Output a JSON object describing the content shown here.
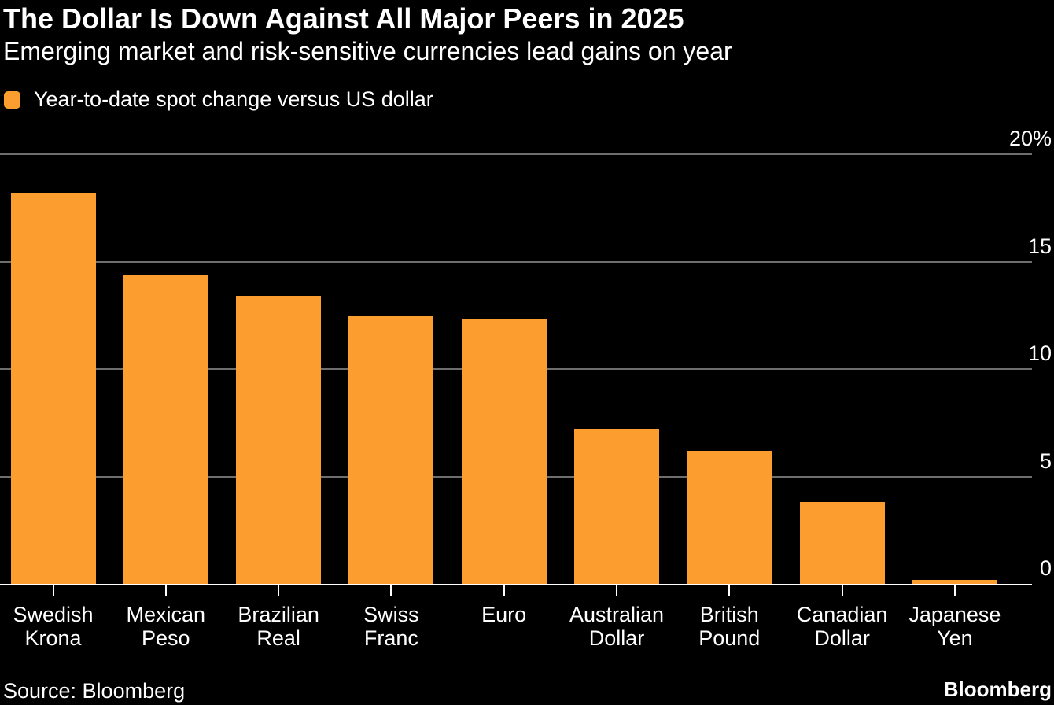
{
  "header": {
    "title": "The Dollar Is Down Against All Major Peers in 2025",
    "subtitle": "Emerging market and risk-sensitive currencies lead gains on year"
  },
  "legend": {
    "label": "Year-to-date spot change versus US dollar",
    "swatch_color": "#FC9E2F"
  },
  "chart_data": {
    "type": "bar",
    "title": "The Dollar Is Down Against All Major Peers in 2025",
    "subtitle": "Emerging market and risk-sensitive currencies lead gains on year",
    "legend_entries": [
      "Year-to-date spot change versus US dollar"
    ],
    "legend_position": "top-left",
    "categories": [
      "Swedish Krona",
      "Mexican Peso",
      "Brazilian Real",
      "Swiss Franc",
      "Euro",
      "Australian Dollar",
      "British Pound",
      "Canadian Dollar",
      "Japanese Yen"
    ],
    "category_lines": [
      [
        "Swedish",
        "Krona"
      ],
      [
        "Mexican",
        "Peso"
      ],
      [
        "Brazilian",
        "Real"
      ],
      [
        "Swiss",
        "Franc"
      ],
      [
        "Euro"
      ],
      [
        "Australian",
        "Dollar"
      ],
      [
        "British",
        "Pound"
      ],
      [
        "Canadian",
        "Dollar"
      ],
      [
        "Japanese",
        "Yen"
      ]
    ],
    "values": [
      18.2,
      14.4,
      13.4,
      12.5,
      12.3,
      7.2,
      6.2,
      3.8,
      0.2
    ],
    "unit": "%",
    "xlabel": "",
    "ylabel": "",
    "ylim": [
      0,
      20
    ],
    "yticks": [
      {
        "value": 20,
        "label": "20%"
      },
      {
        "value": 15,
        "label": "15"
      },
      {
        "value": 10,
        "label": "10"
      },
      {
        "value": 5,
        "label": "5"
      },
      {
        "value": 0,
        "label": "0"
      }
    ],
    "grid": "horizontal",
    "bar_color": "#FC9E2F",
    "gridline_color": "#6E6E6E",
    "axis_color": "#FFFFFF",
    "background_color": "#000000",
    "text_color": "#FFFFFF"
  },
  "footer": {
    "source": "Source: Bloomberg",
    "brand": "Bloomberg"
  }
}
